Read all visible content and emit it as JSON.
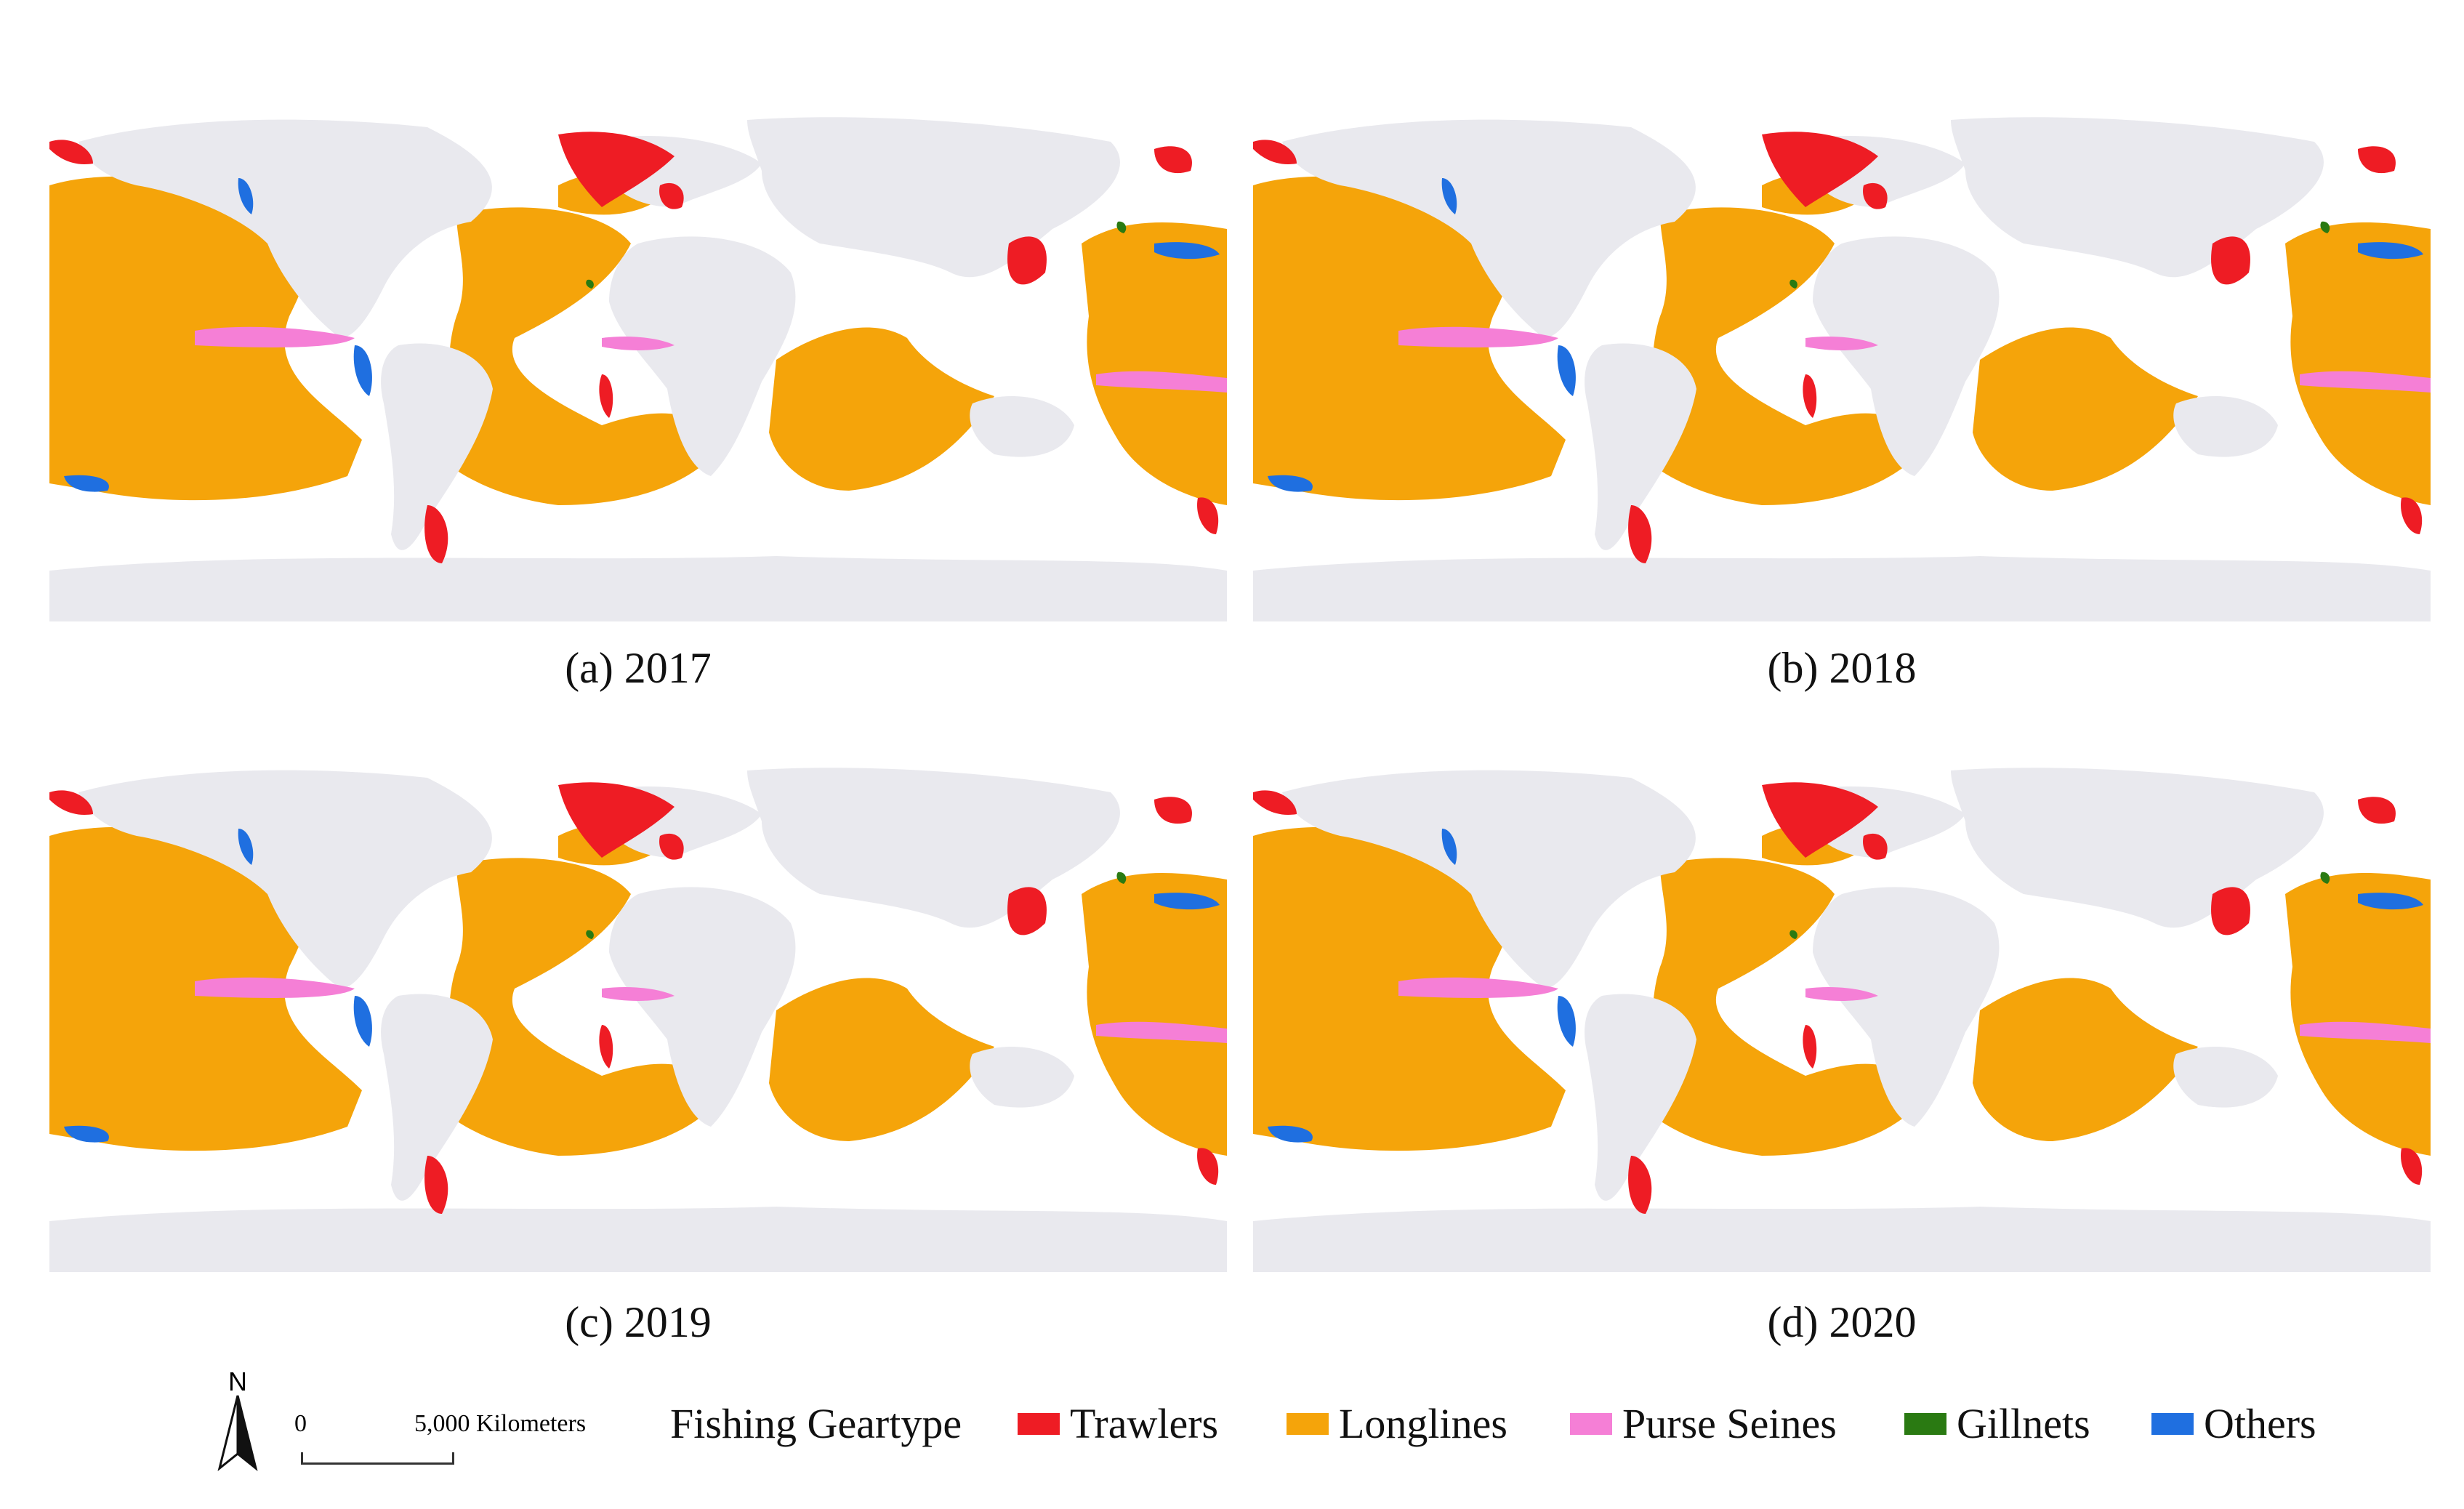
{
  "panels": [
    {
      "id": "a",
      "caption": "(a) 2017"
    },
    {
      "id": "b",
      "caption": "(b) 2018"
    },
    {
      "id": "c",
      "caption": "(c) 2019"
    },
    {
      "id": "d",
      "caption": "(d) 2020"
    }
  ],
  "north_arrow": {
    "label": "N"
  },
  "scale_bar": {
    "zero_label": "0",
    "distance_label": "5,000 Kilometers"
  },
  "legend": {
    "title": "Fishing Geartype",
    "items": [
      {
        "label": "Trawlers",
        "color": "#ee1c24"
      },
      {
        "label": "Longlines",
        "color": "#f5a40a"
      },
      {
        "label": "Purse Seines",
        "color": "#f57fd6"
      },
      {
        "label": "Gillnets",
        "color": "#2a7a12"
      },
      {
        "label": "Others",
        "color": "#1f6fe0"
      }
    ]
  },
  "colors": {
    "land": "#e9e9ee",
    "ocean_background": "#ffffff",
    "trawlers": "#ee1c24",
    "longlines": "#f5a40a",
    "purse_seines": "#f57fd6",
    "gillnets": "#2a7a12",
    "others": "#1f6fe0"
  }
}
